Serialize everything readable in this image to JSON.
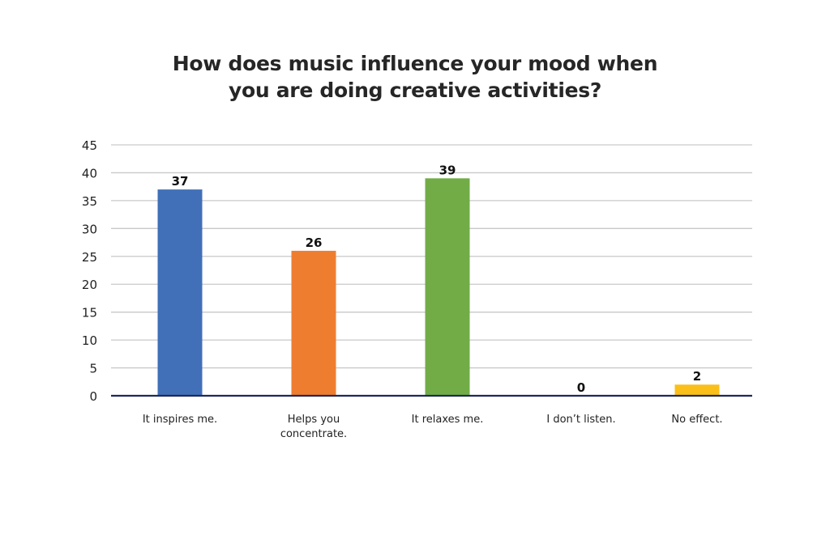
{
  "chart_data": {
    "type": "bar",
    "title_lines": [
      "How does music influence your mood when",
      "you are doing creative activities?"
    ],
    "categories": [
      "It inspires me.",
      "Helps you concentrate.",
      "It relaxes me.",
      "I don’t listen.",
      "No effect."
    ],
    "category_lines": [
      [
        "It inspires me."
      ],
      [
        "Helps you",
        "concentrate."
      ],
      [
        "It relaxes me."
      ],
      [
        "I don’t listen."
      ],
      [
        "No effect."
      ]
    ],
    "values": [
      37,
      26,
      39,
      0,
      2
    ],
    "colors": [
      "#4170b8",
      "#ef7d30",
      "#71ac47",
      "#ffc000",
      "#fbbf1a"
    ],
    "ylim": [
      0,
      45
    ],
    "yticks": [
      0,
      5,
      10,
      15,
      20,
      25,
      30,
      35,
      40,
      45
    ],
    "grid": true,
    "xlabel": "",
    "ylabel": ""
  }
}
